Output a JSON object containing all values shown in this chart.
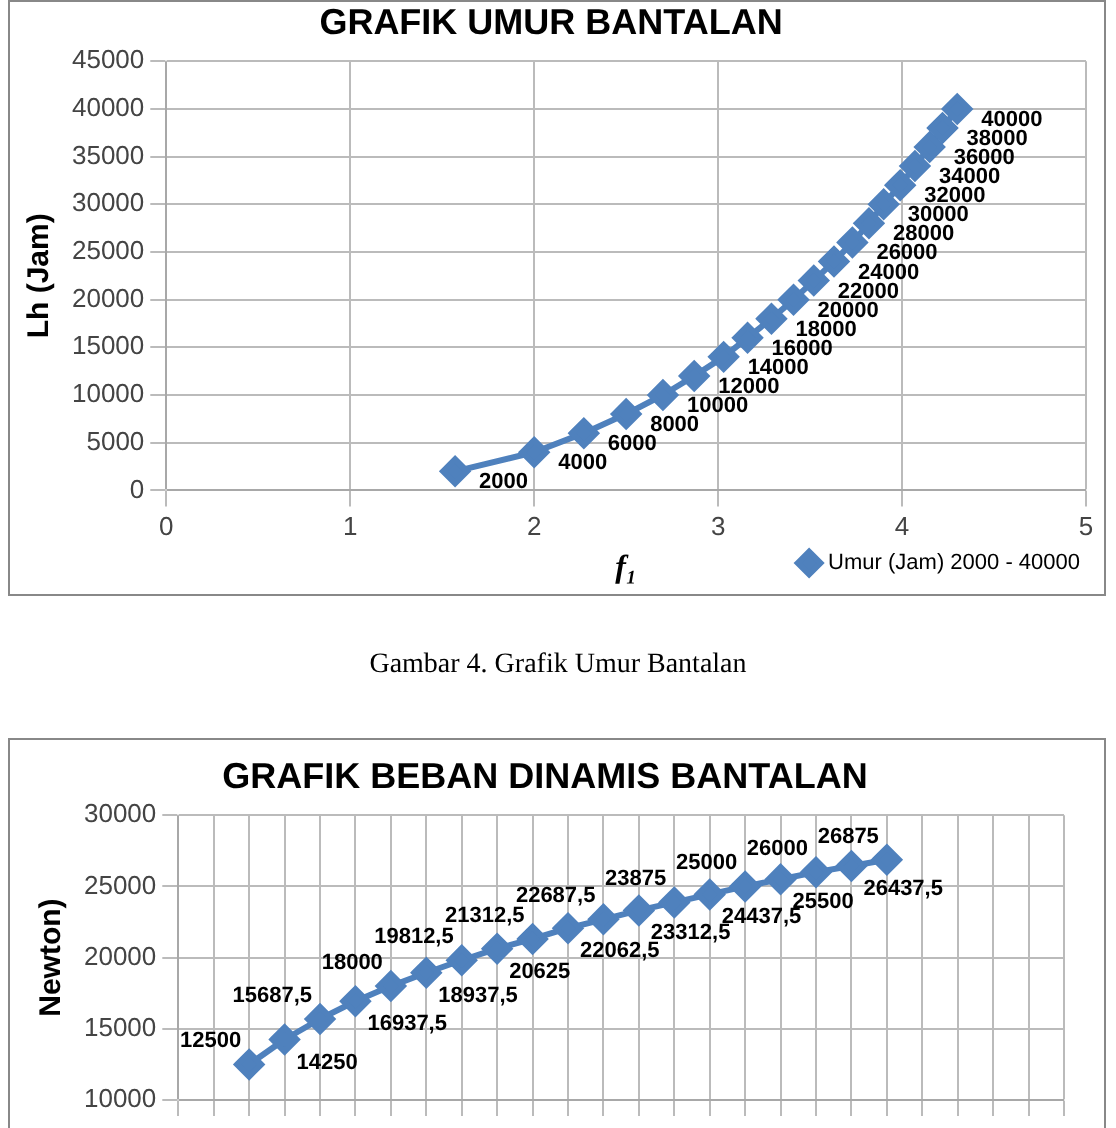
{
  "chart_data": [
    {
      "type": "line",
      "title": "GRAFIK UMUR BANTALAN",
      "xlabel": "f₁",
      "ylabel": "Lh (Jam)",
      "xlim": [
        0,
        5
      ],
      "xticks": [
        0,
        1,
        2,
        3,
        4,
        5
      ],
      "ylim": [
        0,
        45000
      ],
      "yticks": [
        0,
        5000,
        10000,
        15000,
        20000,
        25000,
        30000,
        35000,
        40000,
        45000
      ],
      "grid": true,
      "legend": "bottom right",
      "marker": "diamond",
      "data_labels": true,
      "annotations": [
        "Gambar 4. Grafik Umur Bantalan"
      ],
      "series": [
        {
          "name": "Umur (Jam) 2000 - 40000",
          "color": "#4f81bd",
          "x": [
            1.57,
            2.0,
            2.27,
            2.5,
            2.7,
            2.87,
            3.03,
            3.16,
            3.29,
            3.41,
            3.52,
            3.63,
            3.73,
            3.82,
            3.9,
            3.99,
            4.07,
            4.15,
            4.22,
            4.3
          ],
          "values": [
            2000,
            4000,
            6000,
            8000,
            10000,
            12000,
            14000,
            16000,
            18000,
            20000,
            22000,
            24000,
            26000,
            28000,
            30000,
            32000,
            34000,
            36000,
            38000,
            40000
          ]
        }
      ]
    },
    {
      "type": "line",
      "title": "GRAFIK BEBAN DINAMIS BANTALAN",
      "ylabel": "Newton)",
      "categories": [
        null,
        null,
        null,
        null,
        null,
        null,
        null,
        null,
        null,
        null,
        null,
        null,
        null,
        null,
        null,
        null,
        null,
        null,
        null,
        null,
        null,
        null,
        null,
        null,
        null,
        null
      ],
      "ylim": [
        10000,
        30000
      ],
      "yticks": [
        10000,
        15000,
        20000,
        25000,
        30000
      ],
      "grid": true,
      "tick_labels": "y",
      "marker": "diamond",
      "series": [
        {
          "color": "#4f81bd",
          "values": [
            null,
            null,
            12500,
            14250,
            15687.5,
            16937.5,
            18000,
            18937.5,
            19812.5,
            20625,
            21312.5,
            22062.5,
            22687.5,
            23312.5,
            23875,
            24437.5,
            25000,
            25500,
            26000,
            26437.5,
            26875,
            null,
            null,
            null,
            null,
            null
          ],
          "value_labels": [
            null,
            null,
            "12500",
            "14250",
            "15687,5",
            "16937,5",
            "18000",
            "18937,5",
            "19812,5",
            "20625",
            "21312,5",
            "22062,5",
            "22687,5",
            "23312,5",
            "23875",
            "24437,5",
            "25000",
            "25500",
            "26000",
            "26437,5",
            "26875",
            null,
            null,
            null,
            null,
            null
          ]
        }
      ]
    }
  ]
}
